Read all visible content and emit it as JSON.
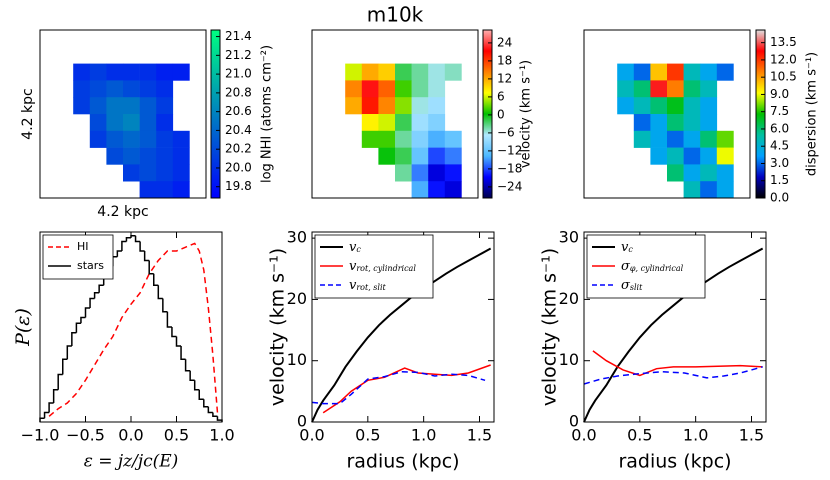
{
  "chart_data": [
    {
      "type": "heatmap",
      "xlabel": "4.2 kpc",
      "ylabel": "4.2 kpc",
      "z": [
        [
          null,
          null,
          null,
          null,
          null,
          null,
          null,
          null,
          null,
          null
        ],
        [
          null,
          null,
          null,
          null,
          null,
          null,
          null,
          null,
          null,
          null
        ],
        [
          null,
          null,
          20.0,
          20.1,
          20.0,
          20.0,
          20.0,
          19.9,
          19.9,
          null
        ],
        [
          null,
          null,
          20.1,
          20.2,
          20.3,
          20.2,
          20.1,
          20.0,
          null,
          null
        ],
        [
          null,
          null,
          20.1,
          20.3,
          20.5,
          20.5,
          20.3,
          20.1,
          null,
          null
        ],
        [
          null,
          null,
          null,
          20.2,
          20.5,
          20.6,
          20.3,
          20.0,
          null,
          null
        ],
        [
          null,
          null,
          null,
          20.1,
          20.3,
          20.4,
          20.3,
          20.1,
          20.0,
          null
        ],
        [
          null,
          null,
          null,
          null,
          20.2,
          20.3,
          20.2,
          20.1,
          20.0,
          null
        ],
        [
          null,
          null,
          null,
          null,
          null,
          20.1,
          20.2,
          20.1,
          20.0,
          null
        ],
        [
          null,
          null,
          null,
          null,
          null,
          null,
          20.0,
          20.0,
          19.9,
          null
        ]
      ],
      "colorbar": {
        "label": "log NHI (atoms cm⁻²)",
        "lim": [
          19.68,
          21.47
        ],
        "ticks": [
          19.8,
          {
            "value": 20,
            "label": "20.0"
          },
          20.2,
          20.4,
          20.6,
          20.8,
          {
            "value": 21,
            "label": "21.0"
          },
          21.2,
          21.4
        ],
        "colors": [
          "#0000ff",
          "#0080c0",
          "#00ff80"
        ]
      }
    },
    {
      "type": "heatmap",
      "title": "m10k",
      "z": [
        [
          null,
          null,
          null,
          null,
          null,
          null,
          null,
          null,
          null,
          null
        ],
        [
          null,
          null,
          null,
          null,
          null,
          null,
          null,
          null,
          null,
          null
        ],
        [
          null,
          null,
          6,
          12,
          10,
          -2,
          -4,
          -6,
          -5,
          null
        ],
        [
          null,
          null,
          14,
          22,
          16,
          2,
          -4,
          -6,
          null,
          null
        ],
        [
          null,
          null,
          12,
          20,
          14,
          4,
          -6,
          -8,
          null,
          null
        ],
        [
          null,
          null,
          null,
          8,
          6,
          -2,
          -8,
          -10,
          null,
          null
        ],
        [
          null,
          null,
          null,
          2,
          2,
          -4,
          -10,
          -14,
          -12,
          null
        ],
        [
          null,
          null,
          null,
          null,
          0,
          -2,
          -12,
          -18,
          -16,
          null
        ],
        [
          null,
          null,
          null,
          null,
          null,
          -4,
          -16,
          -22,
          -20,
          null
        ],
        [
          null,
          null,
          null,
          null,
          null,
          null,
          -14,
          -20,
          -22,
          null
        ]
      ],
      "colorbar": {
        "label": "velocity (km s⁻¹)",
        "lim": [
          -27.7,
          28.3
        ],
        "ticks": [
          {
            "value": -24,
            "label": "−24"
          },
          {
            "value": -18,
            "label": "−18"
          },
          {
            "value": -12,
            "label": "−12"
          },
          {
            "value": -6,
            "label": "−6"
          },
          0,
          6,
          12,
          18,
          24
        ],
        "colors": [
          "#00004d",
          "#0000ff",
          "#4db8ff",
          "#b0e8ff",
          "#00c000",
          "#ffff00",
          "#ff8000",
          "#ff0000",
          "#ffb0b0"
        ]
      }
    },
    {
      "type": "heatmap",
      "z": [
        [
          null,
          null,
          null,
          null,
          null,
          null,
          null,
          null,
          null,
          null
        ],
        [
          null,
          null,
          null,
          null,
          null,
          null,
          null,
          null,
          null,
          null
        ],
        [
          null,
          null,
          4,
          3,
          10,
          12,
          5,
          4,
          3,
          null
        ],
        [
          null,
          null,
          5,
          6,
          13,
          11,
          6,
          5,
          null,
          null
        ],
        [
          null,
          null,
          4,
          5,
          6,
          7,
          5,
          4,
          null,
          null
        ],
        [
          null,
          null,
          null,
          3,
          4,
          6,
          5,
          4,
          null,
          null
        ],
        [
          null,
          null,
          null,
          5,
          4,
          3,
          4,
          6,
          8,
          null
        ],
        [
          null,
          null,
          null,
          null,
          4,
          5,
          3,
          4,
          9,
          null
        ],
        [
          null,
          null,
          null,
          null,
          null,
          6,
          4,
          5,
          4,
          null
        ],
        [
          null,
          null,
          null,
          null,
          null,
          null,
          5,
          3,
          4,
          null
        ]
      ],
      "colorbar": {
        "label": "dispersion (km s⁻¹)",
        "lim": [
          0,
          14.6
        ],
        "ticks": [
          {
            "value": 0,
            "label": "0.0"
          },
          1.5,
          {
            "value": 3,
            "label": "3.0"
          },
          4.5,
          {
            "value": 6,
            "label": "6.0"
          },
          7.5,
          {
            "value": 9,
            "label": "9.0"
          },
          10.5,
          {
            "value": 12,
            "label": "12.0"
          },
          13.5
        ],
        "colors": [
          "#000000",
          "#0000c0",
          "#00a0ff",
          "#00c0a0",
          "#00c000",
          "#ffff00",
          "#ff8000",
          "#ff0000",
          "#e0e0e0"
        ]
      }
    },
    {
      "type": "line",
      "xlabel": "ε = jz/jc(E)",
      "ylabel": "P(ε)",
      "xlim": [
        -1,
        1
      ],
      "ylim": [
        0,
        1
      ],
      "xticks": [
        {
          "value": -1,
          "label": "−1.0"
        },
        {
          "value": -0.5,
          "label": "−0.5"
        },
        {
          "value": 0,
          "label": "0.0"
        },
        0.5,
        {
          "value": 1,
          "label": "1.0"
        }
      ],
      "legend": "upper left",
      "series": [
        {
          "name": "HI",
          "color": "#ff0000",
          "dashed": true,
          "x": [
            -0.9,
            -0.8,
            -0.7,
            -0.6,
            -0.5,
            -0.4,
            -0.3,
            -0.2,
            -0.1,
            0,
            0.1,
            0.2,
            0.3,
            0.4,
            0.5,
            0.6,
            0.7,
            0.75,
            0.8,
            0.85,
            0.9,
            0.95
          ],
          "values": [
            0.03,
            0.07,
            0.1,
            0.15,
            0.22,
            0.3,
            0.38,
            0.45,
            0.55,
            0.62,
            0.68,
            0.78,
            0.85,
            0.9,
            0.9,
            0.92,
            0.94,
            0.9,
            0.8,
            0.6,
            0.35,
            0.05
          ]
        },
        {
          "name": "stars",
          "color": "#000000",
          "bins": [
            -1,
            -0.95,
            -0.9,
            -0.85,
            -0.8,
            -0.75,
            -0.7,
            -0.65,
            -0.6,
            -0.55,
            -0.5,
            -0.45,
            -0.4,
            -0.35,
            -0.3,
            -0.25,
            -0.2,
            -0.15,
            -0.1,
            -0.05,
            0,
            0.05,
            0.1,
            0.15,
            0.2,
            0.25,
            0.3,
            0.35,
            0.4,
            0.45,
            0.5,
            0.55,
            0.6,
            0.65,
            0.7,
            0.75,
            0.8,
            0.85,
            0.9,
            0.95,
            1
          ],
          "values": [
            0.02,
            0.05,
            0.1,
            0.17,
            0.25,
            0.33,
            0.4,
            0.47,
            0.52,
            0.55,
            0.6,
            0.65,
            0.68,
            0.72,
            0.78,
            0.82,
            0.87,
            0.9,
            0.95,
            0.97,
            0.98,
            0.95,
            0.9,
            0.85,
            0.78,
            0.72,
            0.65,
            0.58,
            0.5,
            0.45,
            0.4,
            0.33,
            0.27,
            0.22,
            0.17,
            0.12,
            0.08,
            0.05,
            0.03,
            0.01
          ]
        }
      ]
    },
    {
      "type": "line",
      "xlabel": "radius (kpc)",
      "ylabel": "velocity (km s⁻¹)",
      "xlim": [
        0,
        1.63
      ],
      "ylim": [
        0,
        31
      ],
      "xticks": [
        {
          "value": 0,
          "label": "0.0"
        },
        0.5,
        {
          "value": 1,
          "label": "1.0"
        },
        1.5
      ],
      "yticks": [
        0,
        10,
        20,
        30
      ],
      "legend": "upper left",
      "series": [
        {
          "name": "v",
          "name_sub": "c",
          "color": "#000000",
          "width": 2,
          "x": [
            0,
            0.05,
            0.1,
            0.2,
            0.3,
            0.4,
            0.5,
            0.6,
            0.7,
            0.8,
            0.9,
            1.0,
            1.1,
            1.2,
            1.3,
            1.4,
            1.5,
            1.6
          ],
          "values": [
            0,
            2,
            3.5,
            6,
            9,
            11.5,
            13.8,
            15.8,
            17.5,
            19,
            20.5,
            21.8,
            23,
            24.2,
            25.3,
            26.3,
            27.3,
            28.3
          ]
        },
        {
          "name": "v",
          "name_sub": "rot, cylindrical",
          "color": "#ff0000",
          "x": [
            0.1,
            0.25,
            0.35,
            0.5,
            0.65,
            0.83,
            0.95,
            1.1,
            1.25,
            1.4,
            1.6
          ],
          "values": [
            1.5,
            3.3,
            5,
            6.8,
            7.3,
            8.8,
            8,
            7.8,
            7.6,
            8,
            9.3
          ]
        },
        {
          "name": "v",
          "name_sub": "rot, slit",
          "color": "#0000ff",
          "dashed": true,
          "x": [
            0,
            0.1,
            0.25,
            0.35,
            0.5,
            0.65,
            0.8,
            0.95,
            1.1,
            1.25,
            1.4,
            1.55
          ],
          "values": [
            3.2,
            3,
            3,
            4.5,
            7,
            7.4,
            8.2,
            8.1,
            7.5,
            7.8,
            7.6,
            6.8
          ]
        }
      ]
    },
    {
      "type": "line",
      "xlabel": "radius (kpc)",
      "ylabel": "velocity (km s⁻¹)",
      "xlim": [
        0,
        1.63
      ],
      "ylim": [
        0,
        31
      ],
      "xticks": [
        {
          "value": 0,
          "label": "0.0"
        },
        0.5,
        {
          "value": 1,
          "label": "1.0"
        },
        1.5
      ],
      "yticks": [
        0,
        10,
        20,
        30
      ],
      "legend": "upper left",
      "series": [
        {
          "name": "v",
          "name_sub": "c",
          "color": "#000000",
          "width": 2,
          "x": [
            0,
            0.05,
            0.1,
            0.2,
            0.3,
            0.4,
            0.5,
            0.6,
            0.7,
            0.8,
            0.9,
            1.0,
            1.1,
            1.2,
            1.3,
            1.4,
            1.5,
            1.6
          ],
          "values": [
            0,
            2,
            3.5,
            6,
            9,
            11.5,
            13.8,
            15.8,
            17.5,
            19,
            20.5,
            21.8,
            23,
            24.2,
            25.3,
            26.3,
            27.3,
            28.3
          ]
        },
        {
          "name": "σ",
          "name_sub": "φ, cylindrical",
          "color": "#ff0000",
          "x": [
            0.08,
            0.2,
            0.35,
            0.5,
            0.65,
            0.8,
            1.0,
            1.2,
            1.4,
            1.6
          ],
          "values": [
            11.6,
            10,
            8.5,
            7.6,
            8.7,
            9,
            9,
            9.1,
            9.2,
            9
          ]
        },
        {
          "name": "σ",
          "name_sub": "slit",
          "color": "#0000ff",
          "dashed": true,
          "x": [
            0,
            0.15,
            0.3,
            0.5,
            0.7,
            0.9,
            1.1,
            1.25,
            1.4,
            1.6
          ],
          "values": [
            6.2,
            7,
            7.5,
            7.9,
            8.2,
            8,
            7.2,
            7.5,
            8,
            9
          ]
        }
      ]
    }
  ]
}
